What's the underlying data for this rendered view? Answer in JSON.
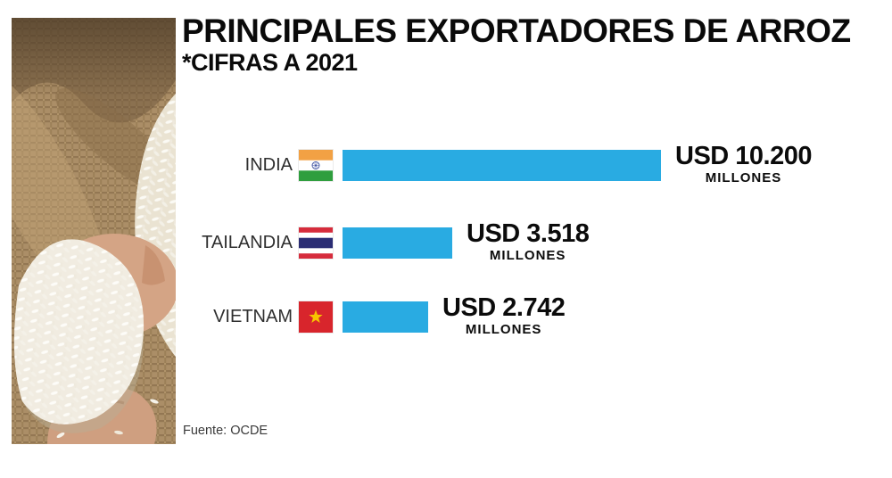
{
  "header": {
    "title": "PRINCIPALES EXPORTADORES DE ARROZ",
    "subtitle": "*CIFRAS A 2021"
  },
  "footer": {
    "source": "Fuente: OCDE"
  },
  "colors": {
    "bar_blue": "#29abe2"
  },
  "chart_data": {
    "type": "bar",
    "orientation": "horizontal",
    "title": "PRINCIPALES EXPORTADORES DE ARROZ",
    "subtitle": "*CIFRAS A 2021",
    "unit": "USD millones",
    "categories": [
      "INDIA",
      "TAILANDIA",
      "VIETNAM"
    ],
    "values": [
      10200,
      3518,
      2742
    ],
    "xlim": [
      0,
      10200
    ],
    "grid": false,
    "legend": false,
    "bar_color": "#29abe2",
    "source": "Fuente: OCDE",
    "rows": [
      {
        "country": "INDIA",
        "flag_icon": "india-flag-icon",
        "value": 10200,
        "value_label": "USD 10.200",
        "unit_label": "MILLONES"
      },
      {
        "country": "TAILANDIA",
        "flag_icon": "thailand-flag-icon",
        "value": 3518,
        "value_label": "USD 3.518",
        "unit_label": "MILLONES"
      },
      {
        "country": "VIETNAM",
        "flag_icon": "vietnam-flag-icon",
        "value": 2742,
        "value_label": "USD 2.742",
        "unit_label": "MILLONES"
      }
    ]
  }
}
